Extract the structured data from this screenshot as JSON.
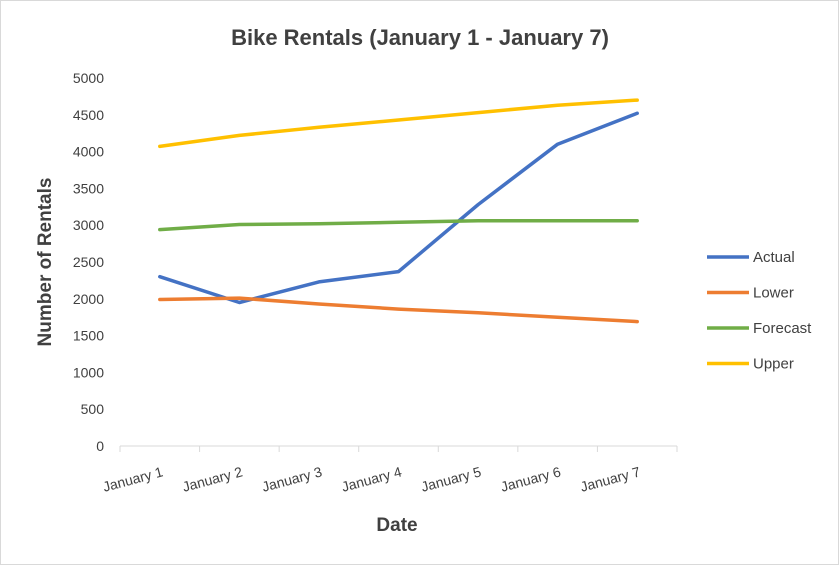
{
  "chart_data": {
    "type": "line",
    "title": "Bike Rentals (January 1 - January 7)",
    "xlabel": "Date",
    "ylabel": "Number of Rentals",
    "categories": [
      "January 1",
      "January 2",
      "January 3",
      "January 4",
      "January 5",
      "January 6",
      "January 7"
    ],
    "ylim": [
      0,
      5000
    ],
    "yticks": [
      0,
      500,
      1000,
      1500,
      2000,
      2500,
      3000,
      3500,
      4000,
      4500,
      5000
    ],
    "grid": false,
    "legend_position": "right",
    "series": [
      {
        "name": "Actual",
        "color": "#4472c4",
        "values": [
          2300,
          1950,
          2230,
          2370,
          3280,
          4100,
          4520
        ]
      },
      {
        "name": "Lower",
        "color": "#ed7d31",
        "values": [
          1990,
          2010,
          1930,
          1860,
          1810,
          1750,
          1690
        ]
      },
      {
        "name": "Forecast",
        "color": "#70ad47",
        "values": [
          2940,
          3010,
          3020,
          3040,
          3060,
          3060,
          3060
        ]
      },
      {
        "name": "Upper",
        "color": "#ffc000",
        "values": [
          4070,
          4220,
          4330,
          4430,
          4530,
          4630,
          4700
        ]
      }
    ]
  }
}
